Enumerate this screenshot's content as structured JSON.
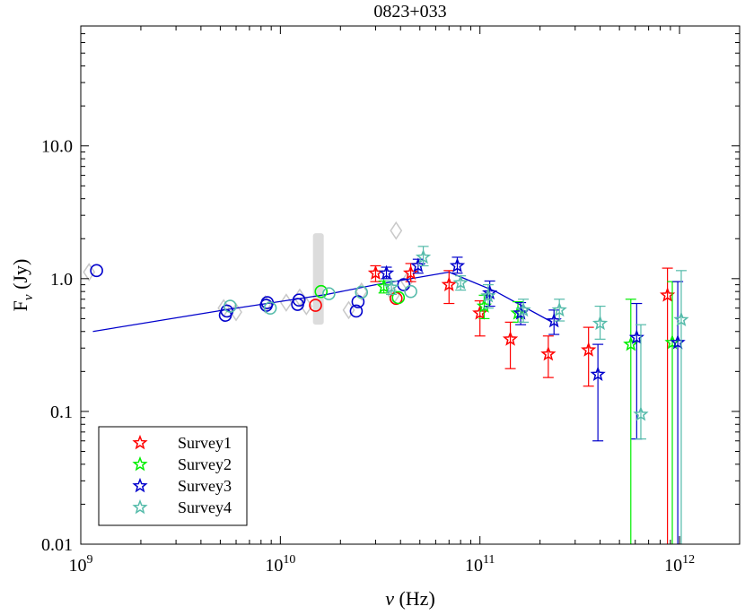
{
  "chart_data": {
    "type": "scatter",
    "title": "0823+033",
    "xlabel_symbol": "ν",
    "xlabel_unit": "(Hz)",
    "ylabel_symbol": "F",
    "ylabel_sub": "ν",
    "ylabel_unit": "(Jy)",
    "x_scale": "log",
    "y_scale": "log",
    "xlim": [
      1000000000.0,
      2000000000000.0
    ],
    "ylim": [
      0.01,
      80
    ],
    "grid": false,
    "legend_position": "bottom-left",
    "x_major_ticks": [
      {
        "value": 1000000000.0,
        "base": "10",
        "exp": "9"
      },
      {
        "value": 10000000000.0,
        "base": "10",
        "exp": "10"
      },
      {
        "value": 100000000000.0,
        "base": "10",
        "exp": "11"
      },
      {
        "value": 1000000000000.0,
        "base": "10",
        "exp": "12"
      }
    ],
    "y_major_ticks": [
      {
        "value": 0.01,
        "label": "0.01"
      },
      {
        "value": 0.1,
        "label": "0.1"
      },
      {
        "value": 1,
        "label": "1.0"
      },
      {
        "value": 10,
        "label": "10.0"
      }
    ],
    "colors": {
      "survey1": "#ff0000",
      "survey2": "#00ee00",
      "survey3": "#0000cc",
      "survey4": "#55bbaa",
      "archival": "#c8c8c8",
      "fit": "#0000cc"
    },
    "fit_line": [
      [
        1150000000.0,
        0.4
      ],
      [
        5200000000.0,
        0.58
      ],
      [
        17000000000.0,
        0.76
      ],
      [
        30000000000.0,
        0.9
      ],
      [
        70000000000.0,
        1.12
      ],
      [
        120000000000.0,
        0.8
      ],
      [
        230000000000.0,
        0.47
      ]
    ],
    "archival_points": [
      {
        "x": 1100000000.0,
        "y": 1.12
      },
      {
        "x": 5200000000.0,
        "y": 0.6
      },
      {
        "x": 6000000000.0,
        "y": 0.56
      },
      {
        "x": 8400000000.0,
        "y": 0.64
      },
      {
        "x": 10700000000.0,
        "y": 0.66
      },
      {
        "x": 12500000000.0,
        "y": 0.72
      },
      {
        "x": 13500000000.0,
        "y": 0.62
      },
      {
        "x": 22000000000.0,
        "y": 0.58
      },
      {
        "x": 25500000000.0,
        "y": 0.8
      },
      {
        "x": 37000000000.0,
        "y": 0.75
      },
      {
        "x": 38000000000.0,
        "y": 2.3
      },
      {
        "x": 43000000000.0,
        "y": 0.95
      }
    ],
    "archival_bar": {
      "x": 15500000000.0,
      "y_low": 0.45,
      "y_high": 2.2
    },
    "series": [
      {
        "name": "Survey1",
        "color_key": "survey1",
        "circles": [
          {
            "x": 15000000000.0,
            "y": 0.63
          },
          {
            "x": 38000000000.0,
            "y": 0.71
          }
        ],
        "stars": [
          {
            "x": 30000000000.0,
            "y": 1.1,
            "lo": 0.95,
            "hi": 1.25
          },
          {
            "x": 45000000000.0,
            "y": 1.1,
            "lo": 0.95,
            "hi": 1.3
          },
          {
            "x": 70000000000.0,
            "y": 0.9,
            "lo": 0.65,
            "hi": 1.15
          },
          {
            "x": 100000000000.0,
            "y": 0.55,
            "lo": 0.37,
            "hi": 0.68
          },
          {
            "x": 142000000000.0,
            "y": 0.35,
            "lo": 0.21,
            "hi": 0.47
          },
          {
            "x": 220000000000.0,
            "y": 0.27,
            "lo": 0.18,
            "hi": 0.37
          },
          {
            "x": 350000000000.0,
            "y": 0.29,
            "lo": 0.155,
            "hi": 0.43
          },
          {
            "x": 870000000000.0,
            "y": 0.75,
            "lo": 0.01,
            "hi": 1.2
          }
        ]
      },
      {
        "name": "Survey2",
        "color_key": "survey2",
        "circles": [
          {
            "x": 16000000000.0,
            "y": 0.8
          },
          {
            "x": 39000000000.0,
            "y": 0.72
          }
        ],
        "stars": [
          {
            "x": 33000000000.0,
            "y": 0.87,
            "lo": 0.78,
            "hi": 0.96
          },
          {
            "x": 105000000000.0,
            "y": 0.62,
            "lo": 0.5,
            "hi": 0.75
          },
          {
            "x": 155000000000.0,
            "y": 0.55,
            "lo": 0.47,
            "hi": 0.67
          },
          {
            "x": 570000000000.0,
            "y": 0.32,
            "lo": 0.01,
            "hi": 0.7
          },
          {
            "x": 920000000000.0,
            "y": 0.33,
            "lo": 0.01,
            "hi": 0.95
          }
        ]
      },
      {
        "name": "Survey3",
        "color_key": "survey3",
        "circles": [
          {
            "x": 1200000000.0,
            "y": 1.15
          },
          {
            "x": 5300000000.0,
            "y": 0.53
          },
          {
            "x": 5400000000.0,
            "y": 0.57
          },
          {
            "x": 8500000000.0,
            "y": 0.63
          },
          {
            "x": 8600000000.0,
            "y": 0.66
          },
          {
            "x": 12200000000.0,
            "y": 0.64
          },
          {
            "x": 12400000000.0,
            "y": 0.69
          },
          {
            "x": 24000000000.0,
            "y": 0.57
          },
          {
            "x": 24500000000.0,
            "y": 0.67
          },
          {
            "x": 41500000000.0,
            "y": 0.9
          }
        ],
        "stars": [
          {
            "x": 34000000000.0,
            "y": 1.1,
            "lo": 1.0,
            "hi": 1.22
          },
          {
            "x": 49000000000.0,
            "y": 1.25,
            "lo": 1.1,
            "hi": 1.4
          },
          {
            "x": 77000000000.0,
            "y": 1.25,
            "lo": 1.1,
            "hi": 1.45
          },
          {
            "x": 112000000000.0,
            "y": 0.78,
            "lo": 0.62,
            "hi": 0.96
          },
          {
            "x": 160000000000.0,
            "y": 0.55,
            "lo": 0.45,
            "hi": 0.66
          },
          {
            "x": 235000000000.0,
            "y": 0.48,
            "lo": 0.38,
            "hi": 0.58
          },
          {
            "x": 390000000000.0,
            "y": 0.19,
            "lo": 0.06,
            "hi": 0.32
          },
          {
            "x": 610000000000.0,
            "y": 0.36,
            "lo": 0.062,
            "hi": 0.65
          },
          {
            "x": 980000000000.0,
            "y": 0.33,
            "lo": 0.01,
            "hi": 0.95
          }
        ]
      },
      {
        "name": "Survey4",
        "color_key": "survey4",
        "circles": [
          {
            "x": 5600000000.0,
            "y": 0.62
          },
          {
            "x": 8900000000.0,
            "y": 0.6
          },
          {
            "x": 17500000000.0,
            "y": 0.77
          },
          {
            "x": 25500000000.0,
            "y": 0.79
          },
          {
            "x": 45000000000.0,
            "y": 0.8
          }
        ],
        "stars": [
          {
            "x": 36000000000.0,
            "y": 0.86,
            "lo": 0.76,
            "hi": 0.96
          },
          {
            "x": 52000000000.0,
            "y": 1.45,
            "lo": 1.25,
            "hi": 1.75
          },
          {
            "x": 80000000000.0,
            "y": 0.93,
            "lo": 0.82,
            "hi": 1.05
          },
          {
            "x": 110000000000.0,
            "y": 0.74,
            "lo": 0.6,
            "hi": 0.9
          },
          {
            "x": 165000000000.0,
            "y": 0.58,
            "lo": 0.47,
            "hi": 0.7
          },
          {
            "x": 250000000000.0,
            "y": 0.58,
            "lo": 0.48,
            "hi": 0.7
          },
          {
            "x": 400000000000.0,
            "y": 0.46,
            "lo": 0.35,
            "hi": 0.62
          },
          {
            "x": 640000000000.0,
            "y": 0.095,
            "lo": 0.062,
            "hi": 0.45
          },
          {
            "x": 1020000000000.0,
            "y": 0.49,
            "lo": 0.01,
            "hi": 1.15
          }
        ]
      }
    ]
  }
}
